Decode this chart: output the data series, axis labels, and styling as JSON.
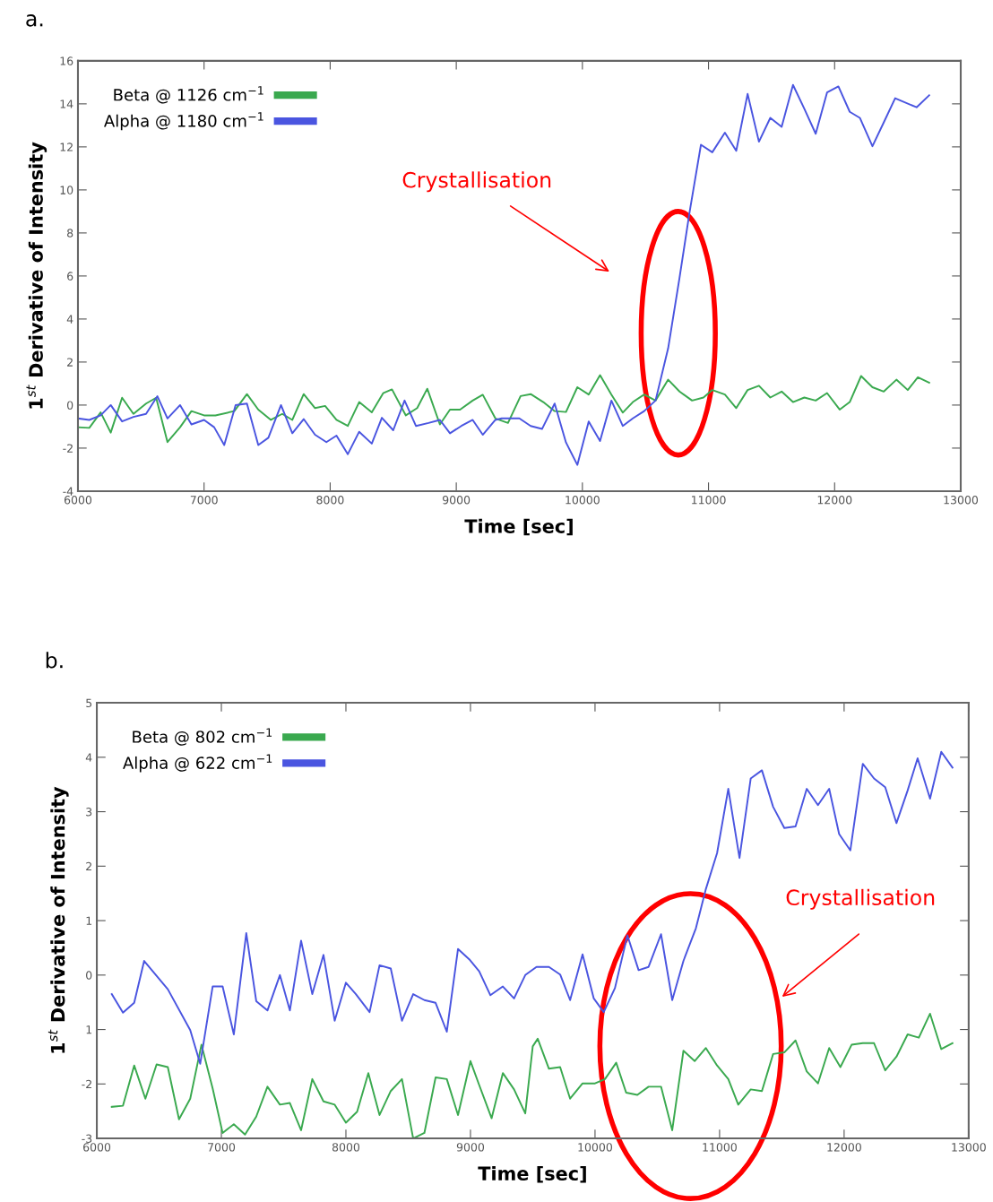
{
  "chart_data": [
    {
      "type": "line",
      "xlabel": "Time [sec]",
      "ylabel": "1$^{st}$ Derivative of Intensity",
      "annotations": [
        "a.",
        "Crystallisation"
      ],
      "xlim": [
        6000,
        13000
      ],
      "xticks": [
        6000,
        7000,
        8000,
        9000,
        10000,
        11000,
        12000,
        13000
      ],
      "ylim": [
        -4,
        16
      ],
      "yticks": [
        -4,
        -2,
        0,
        2,
        4,
        6,
        8,
        10,
        12,
        14,
        16
      ],
      "grid": false,
      "legend": "top left",
      "marker": "none",
      "line_style": "solid",
      "series": [
        {
          "name": "Beta @ 1126 cm$^{−1}$",
          "color": "#3aa94f",
          "x": [
            6000,
            6090,
            6180,
            6260,
            6350,
            6440,
            6540,
            6620,
            6710,
            6810,
            6900,
            7000,
            7090,
            7240,
            7340,
            7430,
            7530,
            7620,
            7700,
            7790,
            7880,
            7960,
            8050,
            8140,
            8230,
            8330,
            8420,
            8490,
            8600,
            8690,
            8770,
            8870,
            8950,
            9030,
            9130,
            9210,
            9310,
            9410,
            9510,
            9590,
            9690,
            9780,
            9870,
            9960,
            10050,
            10140,
            10230,
            10320,
            10400,
            10490,
            10580,
            10680,
            10770,
            10870,
            10960,
            11030,
            11130,
            11220,
            11310,
            11400,
            11490,
            11580,
            11670,
            11760,
            11850,
            11940,
            12040,
            12120,
            12210,
            12300,
            12390,
            12490,
            12580,
            12660,
            12750
          ],
          "values": [
            -1.03,
            -1.06,
            -0.34,
            -1.28,
            0.34,
            -0.41,
            0.07,
            0.34,
            -1.72,
            -1.03,
            -0.28,
            -0.48,
            -0.48,
            -0.28,
            0.51,
            -0.21,
            -0.69,
            -0.41,
            -0.69,
            0.51,
            -0.14,
            -0.04,
            -0.69,
            -0.97,
            0.14,
            -0.34,
            0.55,
            0.73,
            -0.48,
            -0.14,
            0.76,
            -0.9,
            -0.21,
            -0.21,
            0.21,
            0.48,
            -0.62,
            -0.83,
            0.42,
            0.51,
            0.14,
            -0.28,
            -0.32,
            0.83,
            0.49,
            1.39,
            0.49,
            -0.35,
            0.14,
            0.49,
            0.21,
            1.18,
            0.63,
            0.21,
            0.35,
            0.7,
            0.49,
            -0.14,
            0.7,
            0.9,
            0.35,
            0.63,
            0.14,
            0.35,
            0.21,
            0.56,
            -0.21,
            0.14,
            1.35,
            0.83,
            0.63,
            1.18,
            0.7,
            1.29,
            1.04
          ]
        },
        {
          "name": "Alpha @ 1180 cm$^{−1}$",
          "color": "#4a55e0",
          "x": [
            6000,
            6090,
            6180,
            6260,
            6350,
            6440,
            6540,
            6630,
            6710,
            6810,
            6900,
            7000,
            7080,
            7160,
            7250,
            7340,
            7430,
            7510,
            7610,
            7700,
            7790,
            7880,
            7970,
            8050,
            8140,
            8230,
            8330,
            8410,
            8500,
            8590,
            8680,
            8780,
            8870,
            8950,
            9040,
            9130,
            9210,
            9310,
            9360,
            9500,
            9590,
            9680,
            9780,
            9870,
            9960,
            10050,
            10140,
            10230,
            10320,
            10400,
            10490,
            10580,
            10680,
            10770,
            10850,
            10940,
            11030,
            11130,
            11220,
            11310,
            11400,
            11490,
            11580,
            11670,
            11760,
            11850,
            11940,
            12030,
            12120,
            12200,
            12300,
            12390,
            12480,
            12650,
            12750
          ],
          "values": [
            -0.62,
            -0.69,
            -0.48,
            0,
            -0.76,
            -0.55,
            -0.41,
            0.41,
            -0.62,
            0,
            -0.9,
            -0.69,
            -1.03,
            -1.86,
            0,
            0.07,
            -1.86,
            -1.52,
            0,
            -1.31,
            -0.65,
            -1.38,
            -1.72,
            -1.42,
            -2.28,
            -1.24,
            -1.79,
            -0.59,
            -1.17,
            0.21,
            -0.97,
            -0.83,
            -0.69,
            -1.31,
            -0.97,
            -0.69,
            -1.38,
            -0.69,
            -0.62,
            -0.62,
            -0.97,
            -1.11,
            0.07,
            -1.74,
            -2.78,
            -0.76,
            -1.67,
            0.21,
            -0.97,
            -0.62,
            -0.28,
            0.21,
            2.64,
            5.91,
            8.97,
            12.1,
            11.75,
            12.66,
            11.82,
            14.46,
            12.24,
            13.35,
            12.93,
            14.88,
            13.77,
            12.61,
            14.53,
            14.81,
            13.63,
            13.35,
            12.03,
            13.14,
            14.26,
            13.84,
            14.4
          ]
        }
      ]
    },
    {
      "type": "line",
      "xlabel": "Time [sec]",
      "ylabel": "1$^{st}$ Derivative of Intensity",
      "annotations": [
        "b.",
        "Crystallisation"
      ],
      "xlim": [
        6000,
        13000
      ],
      "xticks": [
        6000,
        7000,
        8000,
        9000,
        10000,
        11000,
        12000,
        13000
      ],
      "ylim": [
        -3,
        5
      ],
      "yticks": [
        -3,
        -2,
        {
          "value": -1,
          "label": "1"
        },
        0,
        1,
        2,
        3,
        4,
        5
      ],
      "grid": false,
      "legend": "top left",
      "marker": "none",
      "line_style": "solid",
      "series": [
        {
          "name": "Beta @ 802 cm$^{−1}$",
          "color": "#3aa94f",
          "x": [
            6120,
            6210,
            6300,
            6390,
            6480,
            6570,
            6660,
            6750,
            6840,
            6930,
            7010,
            7100,
            7190,
            7280,
            7370,
            7470,
            7550,
            7640,
            7730,
            7820,
            7910,
            8000,
            8090,
            8180,
            8270,
            8360,
            8450,
            8540,
            8630,
            8720,
            8810,
            8900,
            9000,
            9070,
            9170,
            9260,
            9350,
            9440,
            9500,
            9540,
            9630,
            9720,
            9800,
            9900,
            10000,
            10080,
            10170,
            10250,
            10340,
            10430,
            10530,
            10620,
            10710,
            10800,
            10890,
            10980,
            11070,
            11150,
            11250,
            11340,
            11430,
            11520,
            11610,
            11700,
            11790,
            11880,
            11970,
            12060,
            12150,
            12240,
            12330,
            12420,
            12510,
            12600,
            12690,
            12780,
            12870
          ],
          "values": [
            -2.42,
            -2.4,
            -1.66,
            -2.27,
            -1.64,
            -1.69,
            -2.65,
            -2.27,
            -1.28,
            -2.08,
            -2.9,
            -2.74,
            -2.93,
            -2.6,
            -2.05,
            -2.38,
            -2.35,
            -2.85,
            -1.91,
            -2.32,
            -2.38,
            -2.71,
            -2.51,
            -1.8,
            -2.57,
            -2.13,
            -1.91,
            -3.0,
            -2.9,
            -1.88,
            -1.91,
            -2.57,
            -1.58,
            -2.02,
            -2.63,
            -1.8,
            -2.1,
            -2.54,
            -1.31,
            -1.17,
            -1.72,
            -1.69,
            -2.27,
            -1.99,
            -1.99,
            -1.91,
            -1.61,
            -2.16,
            -2.2,
            -2.05,
            -2.05,
            -2.85,
            -1.39,
            -1.58,
            -1.34,
            -1.66,
            -1.91,
            -2.38,
            -2.1,
            -2.13,
            -1.45,
            -1.42,
            -1.2,
            -1.77,
            -1.99,
            -1.34,
            -1.69,
            -1.28,
            -1.25,
            -1.25,
            -1.75,
            -1.5,
            -1.09,
            -1.15,
            -0.71,
            -1.36,
            -1.25
          ]
        },
        {
          "name": "Alpha @ 622 cm$^{−1}$",
          "color": "#4a55e0",
          "x": [
            6120,
            6210,
            6300,
            6380,
            6570,
            6750,
            6830,
            6930,
            7010,
            7100,
            7200,
            7280,
            7370,
            7470,
            7550,
            7640,
            7730,
            7820,
            7910,
            8000,
            8080,
            8190,
            8270,
            8360,
            8450,
            8540,
            8630,
            8720,
            8810,
            8900,
            8990,
            9070,
            9160,
            9260,
            9350,
            9440,
            9530,
            9630,
            9720,
            9800,
            9900,
            9990,
            10070,
            10160,
            10260,
            10350,
            10430,
            10530,
            10620,
            10710,
            10810,
            10890,
            10980,
            11070,
            11160,
            11250,
            11340,
            11430,
            11520,
            11610,
            11700,
            11790,
            11880,
            11960,
            12050,
            12150,
            12240,
            12330,
            12420,
            12510,
            12590,
            12690,
            12780,
            12870
          ],
          "values": [
            -0.35,
            -0.69,
            -0.51,
            0.26,
            -0.26,
            -1.01,
            -1.63,
            -0.21,
            -0.21,
            -1.09,
            0.77,
            -0.48,
            -0.65,
            0,
            -0.65,
            0.63,
            -0.35,
            0.37,
            -0.84,
            -0.14,
            -0.35,
            -0.68,
            0.18,
            0.12,
            -0.84,
            -0.35,
            -0.46,
            -0.51,
            -1.04,
            0.48,
            0.29,
            0.07,
            -0.37,
            -0.21,
            -0.43,
            0,
            0.15,
            0.15,
            0.01,
            -0.46,
            0.38,
            -0.43,
            -0.68,
            -0.24,
            0.73,
            0.09,
            0.15,
            0.75,
            -0.46,
            0.26,
            0.86,
            1.58,
            2.24,
            3.42,
            2.15,
            3.61,
            3.76,
            3.09,
            2.7,
            2.73,
            3.42,
            3.12,
            3.42,
            2.59,
            2.29,
            3.88,
            3.61,
            3.45,
            2.79,
            3.39,
            3.98,
            3.24,
            4.1,
            3.81
          ]
        }
      ]
    }
  ]
}
